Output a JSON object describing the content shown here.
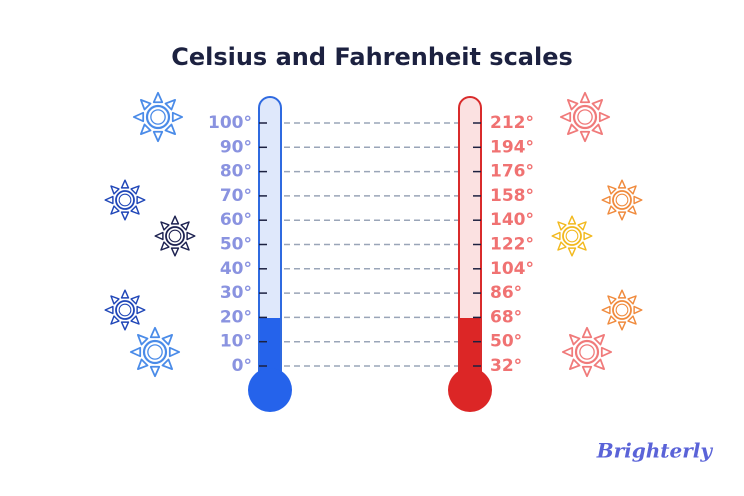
{
  "title": "Celsius and Fahrenheit scales",
  "celsius": {
    "labels": [
      "100°",
      "90°",
      "80°",
      "70°",
      "60°",
      "50°",
      "40°",
      "30°",
      "20°",
      "10°",
      "0°"
    ]
  },
  "fahrenheit": {
    "labels": [
      "212°",
      "194°",
      "176°",
      "158°",
      "140°",
      "122°",
      "104°",
      "86°",
      "68°",
      "50°",
      "32°"
    ]
  },
  "brand": "Brighterly"
}
